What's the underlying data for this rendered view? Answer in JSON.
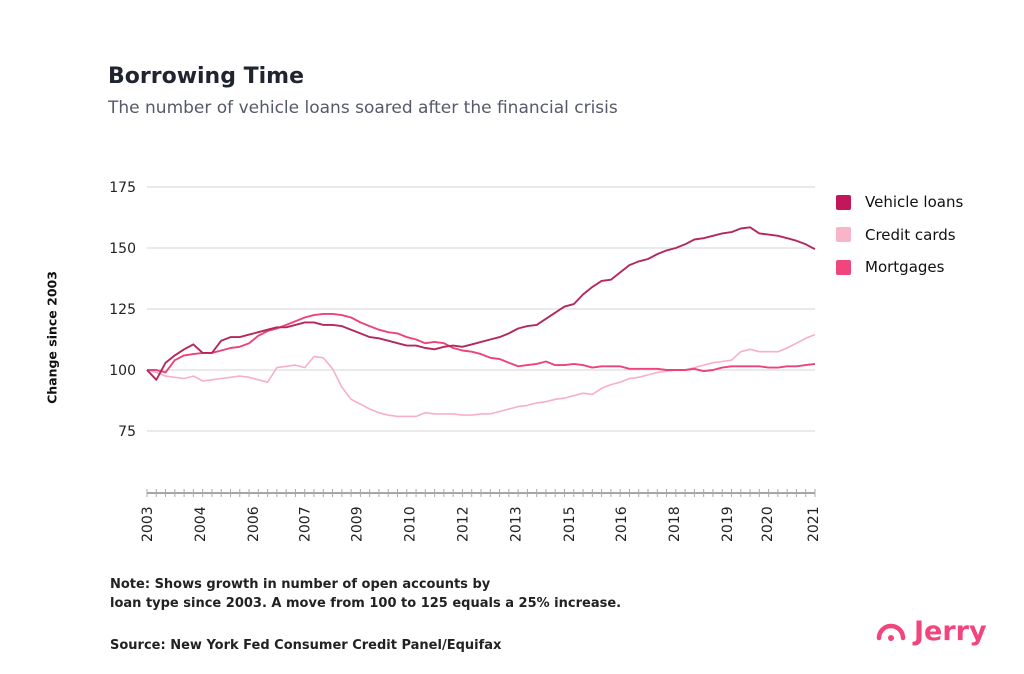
{
  "header": {
    "title": "Borrowing Time",
    "subtitle": "The number of vehicle loans soared after the financial crisis"
  },
  "note_lines": [
    "Note: Shows growth in number of open accounts by",
    "loan type since 2003. A move from 100 to 125 equals a 25% increase."
  ],
  "source": "Source: New York Fed Consumer Credit Panel/Equifax",
  "logo": {
    "text": "Jerry",
    "color": "#f0457d"
  },
  "chart_data": {
    "type": "line",
    "ylabel": "Change since 2003",
    "ylim": [
      50,
      175
    ],
    "yticks": [
      75,
      100,
      125,
      150,
      175
    ],
    "grid": true,
    "legend_placement": "right",
    "x_frequency": "quarterly",
    "x_start": "2003",
    "x_end": "2021",
    "xtick_labels": [
      {
        "label": "2003",
        "index": 0
      },
      {
        "label": "2004",
        "index": 5.7
      },
      {
        "label": "2006",
        "index": 11.4
      },
      {
        "label": "2007",
        "index": 17
      },
      {
        "label": "2009",
        "index": 22.6
      },
      {
        "label": "2010",
        "index": 28.3
      },
      {
        "label": "2012",
        "index": 34
      },
      {
        "label": "2013",
        "index": 39.7
      },
      {
        "label": "2015",
        "index": 45.5
      },
      {
        "label": "2016",
        "index": 51.1
      },
      {
        "label": "2018",
        "index": 56.8
      },
      {
        "label": "2019",
        "index": 62.5
      },
      {
        "label": "2020",
        "index": 66.8
      },
      {
        "label": "2021",
        "index": 71.8
      }
    ],
    "series": [
      {
        "name": "Vehicle loans",
        "color": "#b3285f",
        "legend_color": "#c2185b",
        "values": [
          100,
          96,
          103,
          106,
          108.5,
          110.5,
          107,
          107,
          112,
          113.5,
          113.5,
          114.5,
          115.5,
          116.5,
          117.5,
          117.5,
          118.5,
          119.5,
          119.5,
          118.5,
          118.5,
          118,
          116.5,
          115,
          113.5,
          113,
          112,
          111,
          110,
          110,
          109,
          108.5,
          109.5,
          110,
          109.5,
          110.5,
          111.5,
          112.5,
          113.5,
          115,
          117,
          118,
          118.5,
          121,
          123.5,
          126,
          127,
          131,
          134,
          136.5,
          137,
          140,
          143,
          144.5,
          145.5,
          147.5,
          149,
          150,
          151.5,
          153.5,
          154,
          155,
          156,
          156.5,
          158,
          158.5,
          156,
          155.5,
          155,
          154,
          153,
          151.5,
          149.5
        ]
      },
      {
        "name": "Credit cards",
        "color": "#f7b0c6",
        "legend_color": "#f8b4c8",
        "values": [
          100,
          99,
          97.5,
          97,
          96.5,
          97.5,
          95.5,
          96,
          96.5,
          97,
          97.5,
          97,
          96,
          95,
          101,
          101.5,
          102,
          101,
          105.5,
          105,
          100.5,
          93,
          88,
          86,
          84,
          82.5,
          81.5,
          81,
          81,
          81,
          82.5,
          82,
          82,
          82,
          81.5,
          81.5,
          82,
          82,
          83,
          84,
          85,
          85.5,
          86.5,
          87,
          88,
          88.5,
          89.5,
          90.5,
          90,
          92.5,
          94,
          95,
          96.5,
          97,
          98,
          99,
          99.5,
          100,
          100,
          101,
          102,
          103,
          103.5,
          104,
          107.5,
          108.5,
          107.5,
          107.5,
          107.5,
          109,
          111,
          113,
          114.5
        ]
      },
      {
        "name": "Mortgages",
        "color": "#ec4478",
        "legend_color": "#f0457d",
        "values": [
          100,
          100,
          99,
          104,
          106,
          106.5,
          107,
          107,
          108,
          109,
          109.5,
          111,
          114,
          116,
          117,
          118.5,
          120,
          121.5,
          122.5,
          123,
          123,
          122.5,
          121.5,
          119.5,
          118,
          116.5,
          115.5,
          115,
          113.5,
          112.5,
          111,
          111.5,
          111,
          109,
          108,
          107.5,
          106.5,
          105,
          104.5,
          103,
          101.5,
          102,
          102.5,
          103.5,
          102,
          102,
          102.5,
          102,
          101,
          101.5,
          101.5,
          101.5,
          100.5,
          100.5,
          100.5,
          100.5,
          100,
          100,
          100,
          100.5,
          99.5,
          100,
          101,
          101.5,
          101.5,
          101.5,
          101.5,
          101,
          101,
          101.5,
          101.5,
          102,
          102.5
        ]
      }
    ]
  }
}
